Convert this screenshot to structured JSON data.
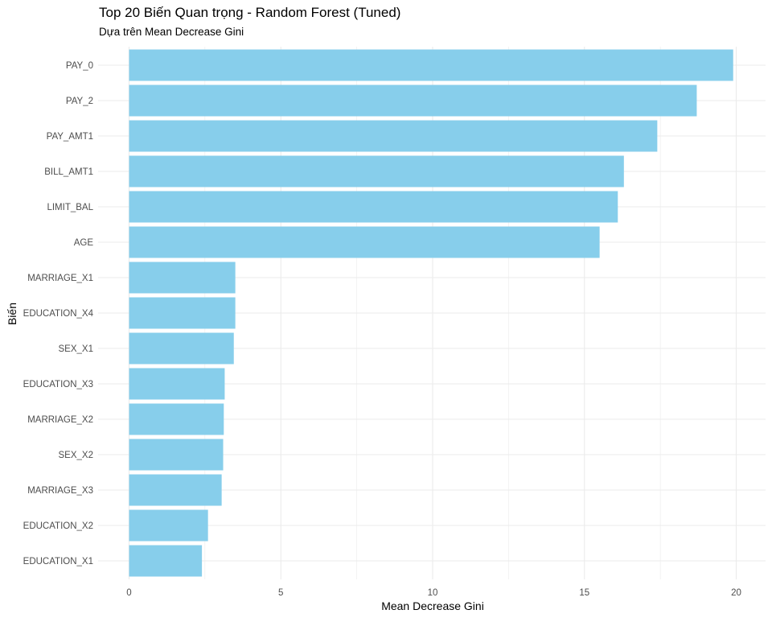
{
  "chart_data": {
    "type": "bar",
    "orientation": "horizontal",
    "title": "Top 20 Biến Quan trọng - Random Forest (Tuned)",
    "subtitle": "Dựa trên Mean Decrease Gini",
    "xlabel": "Mean Decrease Gini",
    "ylabel": "Biến",
    "xlim": [
      0,
      20.8
    ],
    "xticks": [
      0,
      5,
      10,
      15,
      20
    ],
    "grid": true,
    "bar_color": "#87CEEB",
    "categories": [
      "PAY_0",
      "PAY_2",
      "PAY_AMT1",
      "BILL_AMT1",
      "LIMIT_BAL",
      "AGE",
      "MARRIAGE_X1",
      "EDUCATION_X4",
      "SEX_X1",
      "EDUCATION_X3",
      "MARRIAGE_X2",
      "SEX_X2",
      "MARRIAGE_X3",
      "EDUCATION_X2",
      "EDUCATION_X1"
    ],
    "values": [
      19.9,
      18.7,
      17.4,
      16.3,
      16.1,
      15.5,
      3.5,
      3.5,
      3.45,
      3.15,
      3.12,
      3.1,
      3.05,
      2.6,
      2.4
    ]
  }
}
